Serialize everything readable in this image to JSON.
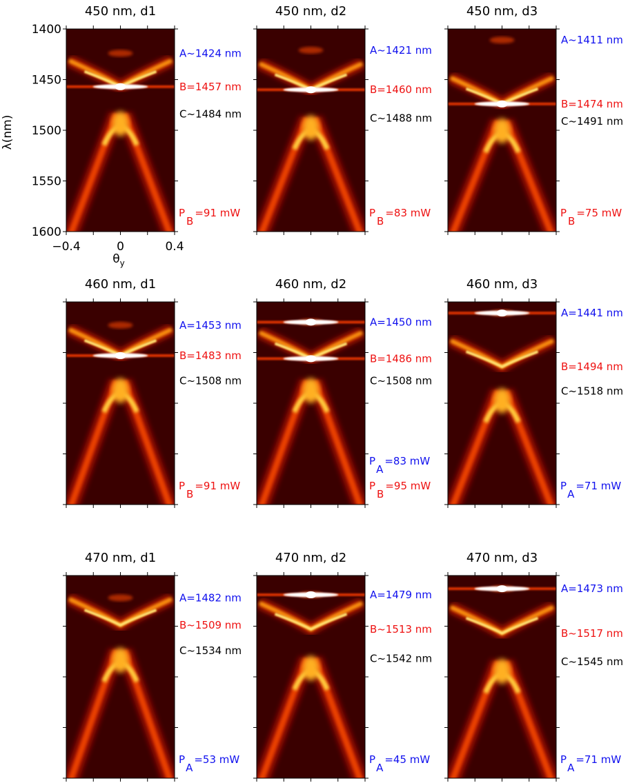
{
  "chart_data": {
    "type": "heatmap",
    "colormap": "hot",
    "grid_layout": "3 rows x 3 columns",
    "shared_axes": {
      "xlabel": "θy",
      "ylabel": "λ(nm)",
      "xlim": [
        -0.4,
        0.4
      ],
      "xticks": [
        "−0.4",
        "0",
        "0.4"
      ],
      "ylim_first_row": [
        1400,
        1600
      ],
      "yticks": [
        "1400",
        "1450",
        "1500",
        "1550",
        "1600"
      ]
    },
    "colors": {
      "A_label": "#1010ee",
      "B_label": "#ee1111",
      "C_label": "#000000"
    },
    "panels": [
      {
        "title": "450 nm, d1",
        "annotations": [
          {
            "text": "A~1424 nm",
            "color": "#1010ee",
            "wavelength": 1424
          },
          {
            "text": "B=1457 nm",
            "color": "#ee1111",
            "wavelength": 1457
          },
          {
            "text": "C~1484 nm",
            "color": "#000000",
            "wavelength": 1484
          }
        ],
        "power": [
          {
            "main": "P",
            "sub": "B",
            "value": "=91 mW",
            "color": "#ee1111"
          }
        ],
        "bands": {
          "A": 1424,
          "B": 1457,
          "C": 1484,
          "lineA": false,
          "lineB": true,
          "upper_v": true
        }
      },
      {
        "title": "450 nm, d2",
        "annotations": [
          {
            "text": "A~1421 nm",
            "color": "#1010ee",
            "wavelength": 1421
          },
          {
            "text": "B=1460 nm",
            "color": "#ee1111",
            "wavelength": 1460
          },
          {
            "text": "C~1488 nm",
            "color": "#000000",
            "wavelength": 1488
          }
        ],
        "power": [
          {
            "main": "P",
            "sub": "B",
            "value": "=83 mW",
            "color": "#ee1111"
          }
        ],
        "bands": {
          "A": 1421,
          "B": 1460,
          "C": 1488,
          "lineA": false,
          "lineB": true,
          "upper_v": true
        }
      },
      {
        "title": "450 nm, d3",
        "annotations": [
          {
            "text": "A~1411 nm",
            "color": "#1010ee",
            "wavelength": 1411
          },
          {
            "text": "B=1474 nm",
            "color": "#ee1111",
            "wavelength": 1474
          },
          {
            "text": "C~1491 nm",
            "color": "#000000",
            "wavelength": 1491
          }
        ],
        "power": [
          {
            "main": "P",
            "sub": "B",
            "value": "=75 mW",
            "color": "#ee1111"
          }
        ],
        "bands": {
          "A": 1411,
          "B": 1474,
          "C": 1491,
          "lineA": false,
          "lineB": true,
          "upper_v": true
        }
      },
      {
        "title": "460 nm, d1",
        "annotations": [
          {
            "text": "A=1453 nm",
            "color": "#1010ee",
            "wavelength": 1453
          },
          {
            "text": "B=1483 nm",
            "color": "#ee1111",
            "wavelength": 1483
          },
          {
            "text": "C~1508 nm",
            "color": "#000000",
            "wavelength": 1508
          }
        ],
        "power": [
          {
            "main": "P",
            "sub": "B",
            "value": "=91 mW",
            "color": "#ee1111"
          }
        ],
        "bands": {
          "A": 1453,
          "B": 1483,
          "C": 1508,
          "lineA": false,
          "lineB": true,
          "upper_v": true
        }
      },
      {
        "title": "460 nm, d2",
        "annotations": [
          {
            "text": "A=1450 nm",
            "color": "#1010ee",
            "wavelength": 1450
          },
          {
            "text": "B=1486 nm",
            "color": "#ee1111",
            "wavelength": 1486
          },
          {
            "text": "C~1508 nm",
            "color": "#000000",
            "wavelength": 1508
          }
        ],
        "power": [
          {
            "main": "P",
            "sub": "A",
            "value": "=83 mW",
            "color": "#1010ee"
          },
          {
            "main": "P",
            "sub": "B",
            "value": "=95 mW",
            "color": "#ee1111"
          }
        ],
        "bands": {
          "A": 1450,
          "B": 1486,
          "C": 1508,
          "lineA": true,
          "lineB": true,
          "upper_v": true
        }
      },
      {
        "title": "460 nm, d3",
        "annotations": [
          {
            "text": "A=1441 nm",
            "color": "#1010ee",
            "wavelength": 1441
          },
          {
            "text": "B=1494 nm",
            "color": "#ee1111",
            "wavelength": 1494
          },
          {
            "text": "C~1518 nm",
            "color": "#000000",
            "wavelength": 1518
          }
        ],
        "power": [
          {
            "main": "P",
            "sub": "A",
            "value": "=71 mW",
            "color": "#1010ee"
          }
        ],
        "bands": {
          "A": 1441,
          "B": 1494,
          "C": 1518,
          "lineA": true,
          "lineB": false,
          "upper_v": true
        }
      },
      {
        "title": "470 nm, d1",
        "annotations": [
          {
            "text": "A=1482 nm",
            "color": "#1010ee",
            "wavelength": 1482
          },
          {
            "text": "B~1509 nm",
            "color": "#ee1111",
            "wavelength": 1509
          },
          {
            "text": "C~1534 nm",
            "color": "#000000",
            "wavelength": 1534
          }
        ],
        "power": [
          {
            "main": "P",
            "sub": "A",
            "value": "=53 mW",
            "color": "#1010ee"
          }
        ],
        "bands": {
          "A": 1482,
          "B": 1509,
          "C": 1534,
          "lineA": false,
          "lineB": false,
          "upper_v": true
        }
      },
      {
        "title": "470 nm, d2",
        "annotations": [
          {
            "text": "A=1479 nm",
            "color": "#1010ee",
            "wavelength": 1479
          },
          {
            "text": "B~1513 nm",
            "color": "#ee1111",
            "wavelength": 1513
          },
          {
            "text": "C~1542 nm",
            "color": "#000000",
            "wavelength": 1542
          }
        ],
        "power": [
          {
            "main": "P",
            "sub": "A",
            "value": "=45 mW",
            "color": "#1010ee"
          }
        ],
        "bands": {
          "A": 1479,
          "B": 1513,
          "C": 1542,
          "lineA": true,
          "lineB": false,
          "upper_v": true
        }
      },
      {
        "title": "470 nm, d3",
        "annotations": [
          {
            "text": "A=1473 nm",
            "color": "#1010ee",
            "wavelength": 1473
          },
          {
            "text": "B~1517 nm",
            "color": "#ee1111",
            "wavelength": 1517
          },
          {
            "text": "C~1545 nm",
            "color": "#000000",
            "wavelength": 1545
          }
        ],
        "power": [
          {
            "main": "P",
            "sub": "A",
            "value": "=71 mW",
            "color": "#1010ee"
          }
        ],
        "bands": {
          "A": 1473,
          "B": 1517,
          "C": 1545,
          "lineA": true,
          "lineB": false,
          "upper_v": true
        }
      }
    ]
  }
}
